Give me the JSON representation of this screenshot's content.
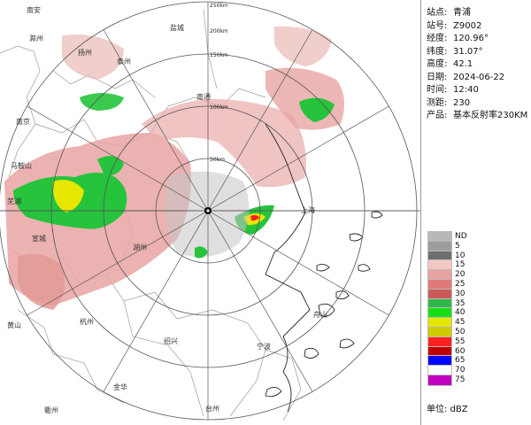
{
  "info": [
    {
      "key": "station",
      "label": "站点:",
      "value": "青浦"
    },
    {
      "key": "code",
      "label": "站号:",
      "value": "Z9002"
    },
    {
      "key": "lon",
      "label": "经度:",
      "value": "120.96°"
    },
    {
      "key": "lat",
      "label": "纬度:",
      "value": "31.07°"
    },
    {
      "key": "alt",
      "label": "高度:",
      "value": "42.1"
    },
    {
      "key": "date",
      "label": "日期:",
      "value": "2024-06-22"
    },
    {
      "key": "time",
      "label": "时间:",
      "value": "12:40"
    },
    {
      "key": "range",
      "label": "测距:",
      "value": "230"
    },
    {
      "key": "product",
      "label": "产品:",
      "value": "基本反射率230KM"
    }
  ],
  "legend": [
    {
      "label": "ND",
      "color": "#b8b8b8"
    },
    {
      "label": "5",
      "color": "#9c9c9c"
    },
    {
      "label": "10",
      "color": "#6e6e6e"
    },
    {
      "label": "15",
      "color": "#f2c8c4"
    },
    {
      "label": "20",
      "color": "#e8a3a0"
    },
    {
      "label": "25",
      "color": "#e07a76"
    },
    {
      "label": "30",
      "color": "#c95a58"
    },
    {
      "label": "35",
      "color": "#2fb84a"
    },
    {
      "label": "40",
      "color": "#17df17"
    },
    {
      "label": "45",
      "color": "#e6e600"
    },
    {
      "label": "50",
      "color": "#cccc00"
    },
    {
      "label": "55",
      "color": "#ff2020"
    },
    {
      "label": "60",
      "color": "#c00000"
    },
    {
      "label": "65",
      "color": "#0000ff"
    },
    {
      "label": "70",
      "color": "#ffffff"
    },
    {
      "label": "75",
      "color": "#c000c0"
    }
  ],
  "unit": "单位: dBZ",
  "ring_labels": [
    "50km",
    "100km",
    "150km",
    "200km"
  ],
  "ring_label_top": "250km",
  "cities": [
    "南安",
    "滁州",
    "扬州",
    "盐城",
    "泰州",
    "南京",
    "南通",
    "马鞍山",
    "芜湖",
    "宣城",
    "湖州",
    "黄山",
    "杭州",
    "绍兴",
    "宁波",
    "金华",
    "台州",
    "衢州",
    "舟山",
    "上海"
  ],
  "colors": {
    "ring": "#555555",
    "boundary": "#9a9a9a",
    "coast": "#222222",
    "pink": "#e7a5a3",
    "green": "#25c43c"
  }
}
